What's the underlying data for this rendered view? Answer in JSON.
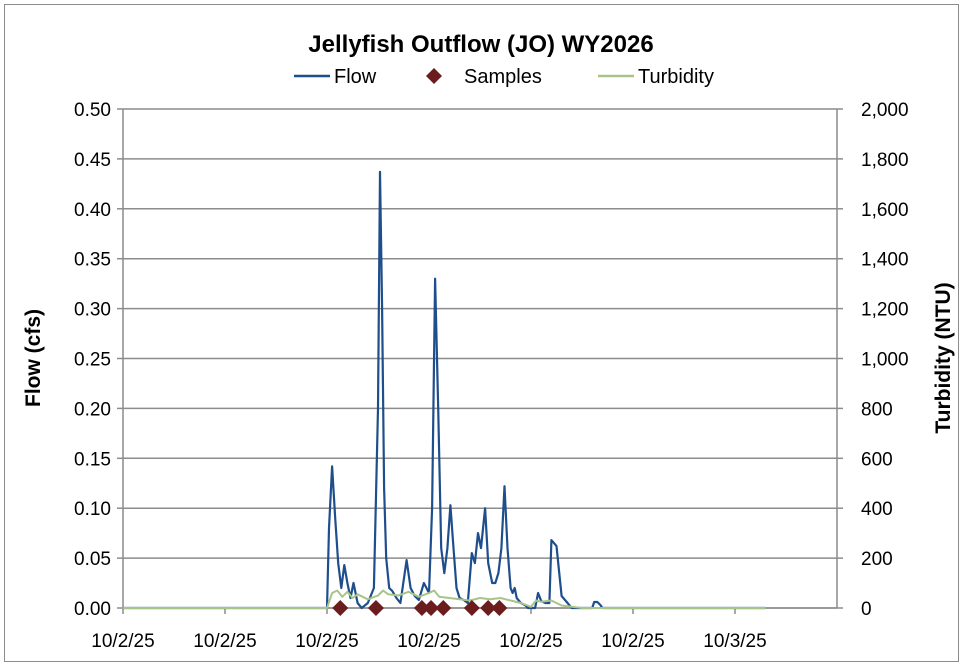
{
  "chart_data": {
    "type": "line",
    "title": "Jellyfish Outflow (JO) WY2026",
    "ylabel": "Flow (cfs)",
    "y2label": "Turbidity (NTU)",
    "ylim": [
      0,
      0.5
    ],
    "y2lim": [
      0,
      2000
    ],
    "xlim": [
      0,
      7
    ],
    "yticks": [
      "0.00",
      "0.05",
      "0.10",
      "0.15",
      "0.20",
      "0.25",
      "0.30",
      "0.35",
      "0.40",
      "0.45",
      "0.50"
    ],
    "y2ticks": [
      "0",
      "200",
      "400",
      "600",
      "800",
      "1,000",
      "1,200",
      "1,400",
      "1,600",
      "1,800",
      "2,000"
    ],
    "xticks": [
      {
        "x": 0,
        "label": "10/2/25"
      },
      {
        "x": 1,
        "label": "10/2/25"
      },
      {
        "x": 2,
        "label": "10/2/25"
      },
      {
        "x": 3,
        "label": "10/2/25"
      },
      {
        "x": 4,
        "label": "10/2/25"
      },
      {
        "x": 5,
        "label": "10/2/25"
      },
      {
        "x": 6,
        "label": "10/3/25"
      }
    ],
    "grid": true,
    "legend": {
      "position": "top",
      "entries": [
        "Flow",
        "Samples",
        "Turbidity"
      ]
    },
    "colors": {
      "flow": "#1f4e8c",
      "samples": "#6b1c1c",
      "turbidity": "#a9c48a",
      "grid": "#8c8c8c"
    },
    "series": [
      {
        "name": "Flow",
        "axis": "left",
        "x": [
          0,
          2.0,
          2.02,
          2.05,
          2.08,
          2.11,
          2.14,
          2.17,
          2.2,
          2.23,
          2.26,
          2.3,
          2.34,
          2.4,
          2.46,
          2.5,
          2.52,
          2.54,
          2.56,
          2.58,
          2.61,
          2.64,
          2.68,
          2.72,
          2.78,
          2.82,
          2.86,
          2.9,
          2.95,
          3.0,
          3.03,
          3.06,
          3.09,
          3.12,
          3.15,
          3.18,
          3.21,
          3.24,
          3.27,
          3.3,
          3.34,
          3.38,
          3.42,
          3.45,
          3.48,
          3.51,
          3.55,
          3.58,
          3.62,
          3.65,
          3.68,
          3.71,
          3.74,
          3.77,
          3.8,
          3.82,
          3.84,
          3.86,
          3.9,
          3.94,
          3.97,
          4.0,
          4.02,
          4.04,
          4.07,
          4.1,
          4.14,
          4.18,
          4.2,
          4.25,
          4.3,
          4.4,
          4.6,
          4.62,
          4.65,
          4.68,
          4.7,
          4.72,
          4.75,
          4.78,
          4.82,
          4.85,
          5.0,
          5.3,
          5.34,
          5.37,
          5.4,
          5.43,
          6.3
        ],
        "values": [
          0,
          0,
          0.08,
          0.142,
          0.09,
          0.045,
          0.02,
          0.043,
          0.025,
          0.01,
          0.025,
          0.005,
          0,
          0.005,
          0.02,
          0.2,
          0.437,
          0.3,
          0.12,
          0.05,
          0.02,
          0.017,
          0.01,
          0.005,
          0.048,
          0.02,
          0.012,
          0.008,
          0.025,
          0.015,
          0.1,
          0.33,
          0.2,
          0.06,
          0.035,
          0.06,
          0.103,
          0.06,
          0.02,
          0.01,
          0.008,
          0.005,
          0.055,
          0.045,
          0.075,
          0.06,
          0.1,
          0.045,
          0.025,
          0.025,
          0.035,
          0.06,
          0.122,
          0.06,
          0.02,
          0.015,
          0.02,
          0.01,
          0.005,
          0.003,
          0,
          0,
          0,
          0,
          0.015,
          0.007,
          0.005,
          0.005,
          0.068,
          0.062,
          0.012,
          0,
          0,
          0.006,
          0.006,
          0.003,
          0,
          0,
          0,
          0,
          0,
          0,
          0,
          0,
          0,
          0,
          0,
          0,
          0
        ]
      },
      {
        "name": "Turbidity",
        "axis": "right",
        "x": [
          0,
          2.0,
          2.05,
          2.1,
          2.15,
          2.2,
          2.25,
          2.3,
          2.4,
          2.5,
          2.55,
          2.6,
          2.7,
          2.8,
          2.9,
          3.0,
          3.05,
          3.1,
          3.2,
          3.3,
          3.4,
          3.5,
          3.6,
          3.7,
          3.8,
          3.9,
          4.0,
          4.05,
          4.1,
          4.2,
          4.3,
          4.5,
          6.3
        ],
        "values": [
          0,
          0,
          60,
          70,
          45,
          65,
          40,
          55,
          35,
          50,
          70,
          55,
          50,
          65,
          45,
          60,
          70,
          45,
          40,
          35,
          30,
          40,
          35,
          40,
          30,
          20,
          5,
          30,
          25,
          30,
          10,
          0,
          0
        ]
      },
      {
        "name": "Samples",
        "axis": "left",
        "type": "scatter",
        "x": [
          2.13,
          2.48,
          2.93,
          3.02,
          3.14,
          3.42,
          3.58,
          3.69
        ],
        "values": [
          0,
          0,
          0,
          0,
          0,
          0,
          0,
          0
        ]
      }
    ]
  }
}
